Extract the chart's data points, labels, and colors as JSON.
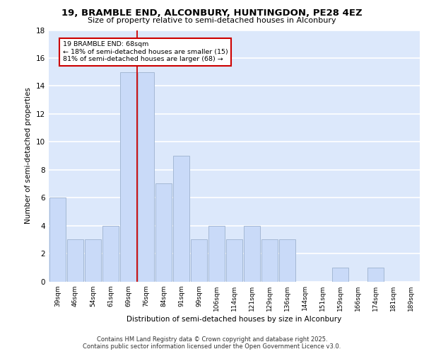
{
  "title_line1": "19, BRAMBLE END, ALCONBURY, HUNTINGDON, PE28 4EZ",
  "title_line2": "Size of property relative to semi-detached houses in Alconbury",
  "xlabel": "Distribution of semi-detached houses by size in Alconbury",
  "ylabel": "Number of semi-detached properties",
  "categories": [
    "39sqm",
    "46sqm",
    "54sqm",
    "61sqm",
    "69sqm",
    "76sqm",
    "84sqm",
    "91sqm",
    "99sqm",
    "106sqm",
    "114sqm",
    "121sqm",
    "129sqm",
    "136sqm",
    "144sqm",
    "151sqm",
    "159sqm",
    "166sqm",
    "174sqm",
    "181sqm",
    "189sqm"
  ],
  "values": [
    6,
    3,
    3,
    4,
    15,
    15,
    7,
    9,
    3,
    4,
    3,
    4,
    3,
    3,
    0,
    0,
    1,
    0,
    1,
    0,
    0
  ],
  "bar_color": "#c9daf8",
  "bar_edge_color": "#a4b8d4",
  "red_line_x": 4.5,
  "annotation_text": "19 BRAMBLE END: 68sqm\n← 18% of semi-detached houses are smaller (15)\n81% of semi-detached houses are larger (68) →",
  "ylim": [
    0,
    18
  ],
  "yticks": [
    0,
    2,
    4,
    6,
    8,
    10,
    12,
    14,
    16,
    18
  ],
  "background_color": "#dce8fb",
  "grid_color": "#ffffff",
  "footer_line1": "Contains HM Land Registry data © Crown copyright and database right 2025.",
  "footer_line2": "Contains public sector information licensed under the Open Government Licence v3.0."
}
